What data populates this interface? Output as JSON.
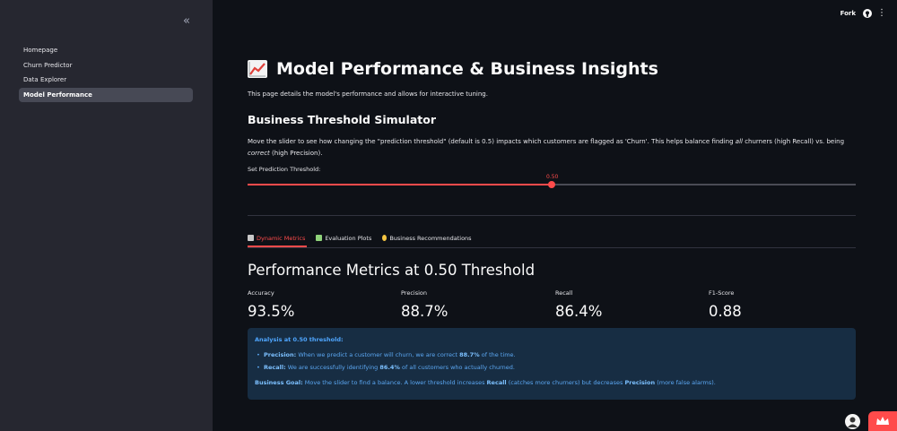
{
  "sidebar": {
    "items": [
      {
        "label": "Homepage"
      },
      {
        "label": "Churn Predictor"
      },
      {
        "label": "Data Explorer"
      },
      {
        "label": "Model Performance"
      }
    ]
  },
  "topbar": {
    "fork_label": "Fork"
  },
  "page": {
    "title": "Model Performance & Business Insights",
    "subtitle": "This page details the model's performance and allows for interactive tuning.",
    "simulator_heading": "Business Threshold Simulator",
    "simulator_desc_part1": "Move the slider to see how changing the \"prediction threshold\" (default is 0.5) impacts which customers are flagged as 'Churn'. This helps balance finding ",
    "simulator_desc_em1": "all",
    "simulator_desc_part2": " churners (high Recall) vs. being ",
    "simulator_desc_em2": "correct",
    "simulator_desc_part3": " (high Precision).",
    "slider_label": "Set Prediction Threshold:",
    "slider_value_text": "0.50",
    "slider_fraction": 0.5
  },
  "tabs": [
    {
      "label": "Dynamic Metrics",
      "icon": "bar-chart-icon"
    },
    {
      "label": "Evaluation Plots",
      "icon": "chart-icon"
    },
    {
      "label": "Business Recommendations",
      "icon": "lightbulb-icon"
    }
  ],
  "metrics": {
    "heading": "Performance Metrics at 0.50 Threshold",
    "items": [
      {
        "label": "Accuracy",
        "value": "93.5%"
      },
      {
        "label": "Precision",
        "value": "88.7%"
      },
      {
        "label": "Recall",
        "value": "86.4%"
      },
      {
        "label": "F1-Score",
        "value": "0.88"
      }
    ]
  },
  "analysis": {
    "heading": "Analysis at 0.50 threshold:",
    "precision_label": "Precision:",
    "precision_text_a": " When we predict a customer will churn, we are correct ",
    "precision_pct": "88.7%",
    "precision_text_b": " of the time.",
    "recall_label": "Recall:",
    "recall_text_a": " We are successfully identifying ",
    "recall_pct": "86.4%",
    "recall_text_b": " of all customers who actually churned.",
    "goal_label": "Business Goal:",
    "goal_text_a": " Move the slider to find a balance. A lower threshold increases ",
    "goal_recall": "Recall",
    "goal_text_b": " (catches more churners) but decreases ",
    "goal_precision": "Precision",
    "goal_text_c": " (more false alarms)."
  },
  "colors": {
    "accent": "#ff4b4b",
    "info_bg": "#172d43",
    "sidebar_bg": "#262730",
    "main_bg": "#0e1117"
  }
}
